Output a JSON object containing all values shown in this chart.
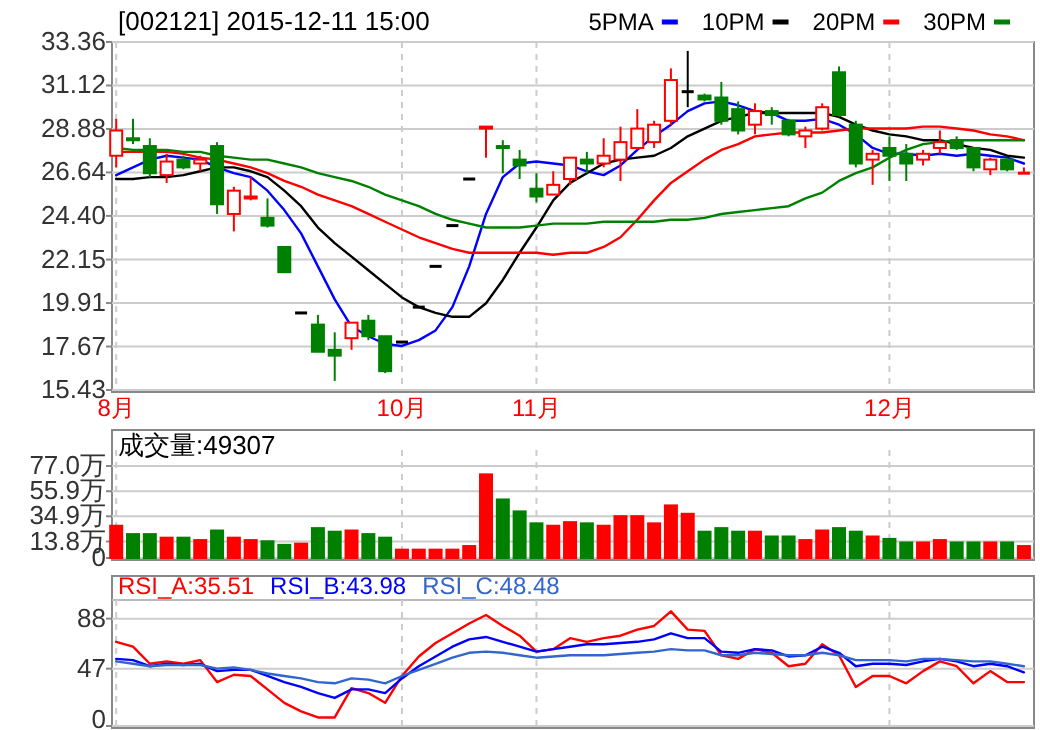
{
  "chart_data": [
    {
      "type": "candlestick",
      "title": "[002121] 2015-12-11 15:00",
      "categories": [
        "8月",
        null,
        null,
        null,
        null,
        null,
        null,
        null,
        null,
        null,
        null,
        null,
        null,
        null,
        null,
        null,
        null,
        "10月",
        null,
        null,
        null,
        null,
        null,
        null,
        null,
        "11月",
        null,
        null,
        null,
        null,
        null,
        null,
        null,
        null,
        null,
        null,
        null,
        null,
        null,
        null,
        null,
        null,
        null,
        null,
        null,
        null,
        "12月",
        null,
        null,
        null,
        null,
        null,
        null,
        null,
        null
      ],
      "ohlc": [
        [
          27.5,
          29.4,
          26.9,
          28.8
        ],
        [
          28.4,
          29.4,
          28.1,
          28.3
        ],
        [
          28.0,
          28.4,
          26.4,
          26.6
        ],
        [
          26.5,
          27.6,
          26.1,
          27.2
        ],
        [
          27.3,
          27.5,
          26.8,
          26.9
        ],
        [
          27.1,
          27.5,
          26.7,
          27.3
        ],
        [
          28.0,
          28.2,
          24.5,
          25.0
        ],
        [
          24.5,
          25.9,
          23.6,
          25.7
        ],
        [
          25.3,
          26.4,
          25.2,
          25.4
        ],
        [
          24.3,
          25.3,
          23.8,
          23.9
        ],
        [
          22.8,
          22.8,
          21.5,
          21.5
        ],
        [
          19.4,
          19.4,
          19.4,
          19.4
        ],
        [
          18.8,
          19.3,
          17.4,
          17.4
        ],
        [
          17.5,
          18.4,
          15.9,
          17.2
        ],
        [
          18.1,
          18.9,
          17.5,
          18.9
        ],
        [
          19.0,
          19.3,
          18.0,
          18.2
        ],
        [
          18.2,
          18.2,
          16.3,
          16.4
        ],
        [
          17.9,
          17.9,
          17.9,
          17.9
        ],
        [
          19.7,
          19.7,
          19.7,
          19.7
        ],
        [
          21.8,
          21.8,
          21.8,
          21.8
        ],
        [
          23.9,
          23.9,
          23.9,
          23.9
        ],
        [
          26.3,
          26.3,
          26.3,
          26.3
        ],
        [
          28.9,
          29.0,
          27.4,
          29.0
        ],
        [
          28.0,
          28.3,
          26.6,
          27.9
        ],
        [
          27.3,
          27.8,
          26.3,
          27.0
        ],
        [
          25.8,
          26.6,
          25.1,
          25.4
        ],
        [
          25.5,
          26.7,
          25.5,
          26.0
        ],
        [
          26.3,
          27.4,
          26.0,
          27.4
        ],
        [
          27.3,
          27.7,
          26.6,
          27.1
        ],
        [
          27.1,
          28.4,
          26.9,
          27.5
        ],
        [
          27.3,
          29.0,
          26.2,
          28.2
        ],
        [
          27.9,
          29.9,
          27.8,
          28.9
        ],
        [
          28.2,
          29.3,
          27.9,
          29.1
        ],
        [
          29.3,
          32.0,
          29.1,
          31.4
        ],
        [
          30.8,
          32.9,
          30.0,
          30.8
        ],
        [
          30.6,
          30.7,
          30.3,
          30.4
        ],
        [
          30.5,
          31.3,
          29.1,
          29.3
        ],
        [
          29.9,
          30.3,
          28.6,
          28.8
        ],
        [
          29.1,
          30.2,
          28.6,
          29.8
        ],
        [
          29.8,
          30.0,
          29.1,
          29.6
        ],
        [
          29.3,
          29.4,
          28.5,
          28.6
        ],
        [
          28.5,
          29.0,
          27.9,
          28.8
        ],
        [
          28.9,
          30.2,
          28.8,
          30.0
        ],
        [
          31.8,
          32.1,
          29.5,
          29.6
        ],
        [
          29.1,
          29.3,
          26.9,
          27.1
        ],
        [
          27.3,
          27.8,
          26.0,
          27.6
        ],
        [
          27.9,
          28.5,
          26.2,
          27.5
        ],
        [
          27.6,
          28.1,
          26.2,
          27.1
        ],
        [
          27.3,
          27.8,
          27.0,
          27.6
        ],
        [
          27.9,
          28.8,
          27.6,
          28.2
        ],
        [
          28.3,
          28.5,
          27.8,
          27.9
        ],
        [
          27.9,
          27.9,
          26.7,
          26.9
        ],
        [
          26.8,
          27.4,
          26.5,
          27.3
        ],
        [
          27.3,
          27.4,
          26.7,
          26.8
        ],
        [
          26.6,
          26.9,
          26.6,
          26.6
        ]
      ],
      "colors": [
        "#ff0000",
        "#008000",
        "#008000",
        "#ff0000",
        "#008000",
        "#ff0000",
        "#008000",
        "#ff0000",
        "#ff0000",
        "#008000",
        "#008000",
        "#000000",
        "#008000",
        "#008000",
        "#ff0000",
        "#008000",
        "#008000",
        "#000000",
        "#000000",
        "#000000",
        "#000000",
        "#000000",
        "#ff0000",
        "#008000",
        "#008000",
        "#008000",
        "#ff0000",
        "#ff0000",
        "#008000",
        "#ff0000",
        "#ff0000",
        "#ff0000",
        "#ff0000",
        "#ff0000",
        "#000000",
        "#008000",
        "#008000",
        "#008000",
        "#ff0000",
        "#008000",
        "#008000",
        "#ff0000",
        "#ff0000",
        "#008000",
        "#008000",
        "#ff0000",
        "#008000",
        "#008000",
        "#ff0000",
        "#ff0000",
        "#008000",
        "#008000",
        "#ff0000",
        "#008000",
        "#ff0000"
      ],
      "series": [
        {
          "name": "5PMA",
          "type": "line",
          "color": "#0000ff",
          "values": [
            26.5,
            26.9,
            27.3,
            27.5,
            27.4,
            27.3,
            26.9,
            26.6,
            26.4,
            25.7,
            24.7,
            23.5,
            21.8,
            20.1,
            18.7,
            18.2,
            17.8,
            17.7,
            18.0,
            18.5,
            19.7,
            21.8,
            24.5,
            26.4,
            27.1,
            27.2,
            27.1,
            27.0,
            26.7,
            26.5,
            27.0,
            27.8,
            28.5,
            29.1,
            29.8,
            30.2,
            30.3,
            30.1,
            29.8,
            29.7,
            29.3,
            29.3,
            29.4,
            29.1,
            28.6,
            27.9,
            27.6,
            27.6,
            27.5,
            27.6,
            27.5,
            27.6,
            27.5,
            27.4,
            27.1
          ]
        },
        {
          "name": "10PM",
          "type": "line",
          "color": "#000000",
          "values": [
            26.3,
            26.3,
            26.4,
            26.4,
            26.5,
            26.7,
            26.9,
            26.9,
            26.7,
            26.4,
            25.7,
            24.9,
            23.8,
            23.0,
            22.3,
            21.6,
            20.9,
            20.2,
            19.7,
            19.4,
            19.2,
            19.2,
            19.9,
            21.1,
            22.5,
            23.8,
            25.2,
            26.1,
            26.6,
            27.1,
            27.3,
            27.4,
            27.5,
            27.9,
            28.5,
            28.9,
            29.3,
            29.5,
            29.7,
            29.7,
            29.7,
            29.7,
            29.7,
            29.5,
            29.1,
            28.8,
            28.6,
            28.5,
            28.3,
            28.3,
            28.1,
            27.9,
            27.8,
            27.5,
            27.4
          ]
        },
        {
          "name": "20PM",
          "type": "line",
          "color": "#ff0000",
          "values": [
            27.7,
            27.7,
            27.7,
            27.7,
            27.6,
            27.4,
            27.3,
            27.1,
            26.9,
            26.6,
            26.2,
            25.9,
            25.5,
            25.2,
            24.9,
            24.5,
            24.1,
            23.7,
            23.3,
            23.0,
            22.7,
            22.5,
            22.5,
            22.5,
            22.5,
            22.5,
            22.4,
            22.5,
            22.5,
            22.8,
            23.3,
            24.2,
            25.2,
            26.1,
            26.7,
            27.3,
            27.8,
            28.1,
            28.5,
            28.6,
            28.7,
            28.7,
            28.7,
            28.8,
            28.9,
            28.9,
            28.9,
            28.9,
            29.0,
            29.0,
            28.9,
            28.8,
            28.6,
            28.5,
            28.3
          ]
        },
        {
          "name": "30PM",
          "type": "line",
          "color": "#008000",
          "values": [
            27.9,
            27.8,
            27.8,
            27.8,
            27.7,
            27.7,
            27.5,
            27.4,
            27.3,
            27.3,
            27.1,
            26.9,
            26.6,
            26.4,
            26.2,
            25.9,
            25.5,
            25.2,
            24.9,
            24.5,
            24.2,
            24.0,
            23.8,
            23.8,
            23.8,
            23.9,
            24.0,
            24.0,
            24.0,
            24.1,
            24.1,
            24.1,
            24.1,
            24.2,
            24.2,
            24.3,
            24.5,
            24.6,
            24.7,
            24.8,
            24.9,
            25.3,
            25.6,
            26.2,
            26.6,
            26.9,
            27.4,
            27.8,
            28.1,
            28.2,
            28.3,
            28.3,
            28.3,
            28.3,
            28.3
          ]
        }
      ],
      "ylim": [
        15.43,
        33.36
      ],
      "yticks": [
        15.43,
        17.67,
        19.91,
        22.15,
        {
          "value": 24.4,
          "label": "24.40"
        },
        26.64,
        28.88,
        31.12,
        33.36
      ],
      "grid": true,
      "legend": "top right"
    },
    {
      "type": "bar",
      "title": "成交量:49307",
      "categories": [
        null,
        null,
        null,
        null,
        null,
        null,
        null,
        null,
        null,
        null,
        null,
        null,
        null,
        null,
        null,
        null,
        null,
        null,
        null,
        null,
        null,
        null,
        null,
        null,
        null,
        null,
        null,
        null,
        null,
        null,
        null,
        null,
        null,
        null,
        null,
        null,
        null,
        null,
        null,
        null,
        null,
        null,
        null,
        null,
        null,
        null,
        null,
        null,
        null,
        null,
        null,
        null,
        null,
        null,
        null
      ],
      "values": [
        27,
        20,
        20,
        17,
        17,
        15,
        23,
        17,
        15,
        14,
        11,
        12,
        25,
        22,
        23,
        20,
        17,
        7,
        7,
        7,
        7,
        10,
        70,
        49,
        39,
        29,
        27,
        30,
        29,
        27,
        35,
        35,
        29,
        44,
        37,
        22,
        25,
        22,
        22,
        18,
        18,
        15,
        23,
        25,
        22,
        18,
        16,
        13,
        13,
        15,
        13,
        13,
        13,
        13,
        10
      ],
      "colors": [
        "#ff0000",
        "#008000",
        "#008000",
        "#ff0000",
        "#008000",
        "#ff0000",
        "#008000",
        "#ff0000",
        "#ff0000",
        "#008000",
        "#008000",
        "#ff0000",
        "#008000",
        "#008000",
        "#ff0000",
        "#008000",
        "#008000",
        "#ff0000",
        "#ff0000",
        "#ff0000",
        "#ff0000",
        "#ff0000",
        "#ff0000",
        "#008000",
        "#008000",
        "#008000",
        "#ff0000",
        "#ff0000",
        "#008000",
        "#ff0000",
        "#ff0000",
        "#ff0000",
        "#ff0000",
        "#ff0000",
        "#ff0000",
        "#008000",
        "#008000",
        "#008000",
        "#ff0000",
        "#008000",
        "#008000",
        "#ff0000",
        "#ff0000",
        "#008000",
        "#008000",
        "#ff0000",
        "#008000",
        "#008000",
        "#ff0000",
        "#ff0000",
        "#008000",
        "#008000",
        "#ff0000",
        "#008000",
        "#ff0000"
      ],
      "ylim": [
        0,
        77.0
      ],
      "yticks": [
        0,
        {
          "value": 13.8,
          "label": "13.8万"
        },
        {
          "value": 34.9,
          "label": "34.9万"
        },
        {
          "value": 55.9,
          "label": "55.9万"
        },
        {
          "value": 77.0,
          "label": "77.0万"
        }
      ],
      "grid": true,
      "tick_labels": "y"
    },
    {
      "type": "line",
      "categories": [
        null,
        null,
        null,
        null,
        null,
        null,
        null,
        null,
        null,
        null,
        null,
        null,
        null,
        null,
        null,
        null,
        null,
        null,
        null,
        null,
        null,
        null,
        null,
        null,
        null,
        null,
        null,
        null,
        null,
        null,
        null,
        null,
        null,
        null,
        null,
        null,
        null,
        null,
        null,
        null,
        null,
        null,
        null,
        null,
        null,
        null,
        null,
        null,
        null,
        null,
        null,
        null,
        null,
        null,
        null
      ],
      "series": [
        {
          "name": "RSI_A:35.51",
          "color": "#ff0000",
          "values": [
            69,
            65,
            51,
            53,
            51,
            54,
            36,
            42,
            41,
            30,
            19,
            12,
            7,
            7,
            31,
            27,
            19,
            41,
            57,
            68,
            76,
            84,
            91,
            82,
            74,
            61,
            63,
            72,
            69,
            72,
            74,
            79,
            82,
            94,
            79,
            78,
            58,
            55,
            63,
            60,
            49,
            51,
            67,
            58,
            32,
            41,
            41,
            35,
            45,
            53,
            49,
            35,
            45,
            36,
            36
          ]
        },
        {
          "name": "RSI_B:43.98",
          "color": "#0000ff",
          "values": [
            55,
            54,
            49,
            51,
            50,
            51,
            45,
            46,
            46,
            41,
            36,
            32,
            27,
            23,
            30,
            30,
            27,
            39,
            49,
            57,
            65,
            71,
            73,
            69,
            65,
            61,
            63,
            65,
            67,
            67,
            68,
            69,
            71,
            76,
            72,
            72,
            61,
            60,
            63,
            62,
            57,
            58,
            65,
            60,
            49,
            51,
            51,
            50,
            53,
            55,
            53,
            49,
            51,
            49,
            44
          ]
        },
        {
          "name": "RSI_C:48.48",
          "color": "#3366cc",
          "values": [
            53,
            51,
            49,
            50,
            50,
            50,
            47,
            48,
            46,
            43,
            41,
            39,
            36,
            35,
            39,
            38,
            35,
            41,
            46,
            51,
            56,
            60,
            61,
            60,
            58,
            56,
            57,
            58,
            58,
            58,
            59,
            60,
            61,
            63,
            62,
            62,
            58,
            58,
            60,
            59,
            58,
            58,
            60,
            58,
            54,
            54,
            54,
            53,
            55,
            55,
            54,
            53,
            53,
            51,
            49
          ]
        }
      ],
      "ylim": [
        0,
        100
      ],
      "yticks": [
        0,
        47,
        88
      ],
      "grid": true,
      "tick_labels": "y",
      "legend": "top left"
    }
  ]
}
